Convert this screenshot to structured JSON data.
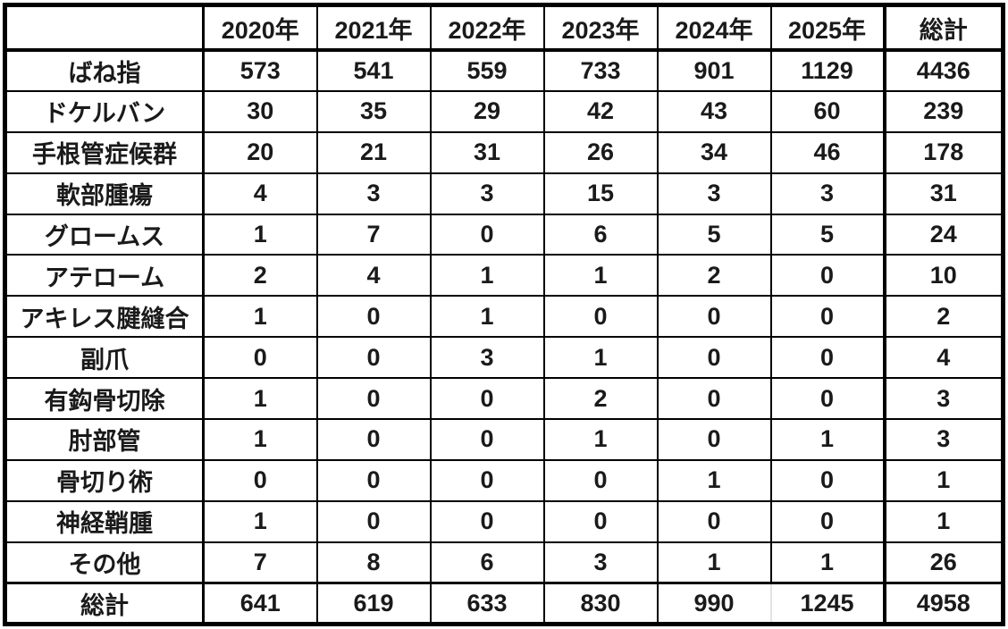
{
  "chart_data": {
    "type": "table",
    "title": "",
    "corner_label": "",
    "columns": [
      "2020年",
      "2021年",
      "2022年",
      "2023年",
      "2024年",
      "2025年",
      "総計"
    ],
    "rows": [
      {
        "label": "ばね指",
        "values": [
          573,
          541,
          559,
          733,
          901,
          1129,
          4436
        ],
        "is_total": false
      },
      {
        "label": "ドケルバン",
        "values": [
          30,
          35,
          29,
          42,
          43,
          60,
          239
        ],
        "is_total": false
      },
      {
        "label": "手根管症候群",
        "values": [
          20,
          21,
          31,
          26,
          34,
          46,
          178
        ],
        "is_total": false
      },
      {
        "label": "軟部腫瘍",
        "values": [
          4,
          3,
          3,
          15,
          3,
          3,
          31
        ],
        "is_total": false
      },
      {
        "label": "グロームス",
        "values": [
          1,
          7,
          0,
          6,
          5,
          5,
          24
        ],
        "is_total": false
      },
      {
        "label": "アテローム",
        "values": [
          2,
          4,
          1,
          1,
          2,
          0,
          10
        ],
        "is_total": false
      },
      {
        "label": "アキレス腱縫合",
        "values": [
          1,
          0,
          1,
          0,
          0,
          0,
          2
        ],
        "is_total": false
      },
      {
        "label": "副爪",
        "values": [
          0,
          0,
          3,
          1,
          0,
          0,
          4
        ],
        "is_total": false
      },
      {
        "label": "有鈎骨切除",
        "values": [
          1,
          0,
          0,
          2,
          0,
          0,
          3
        ],
        "is_total": false
      },
      {
        "label": "肘部管",
        "values": [
          1,
          0,
          0,
          1,
          0,
          1,
          3
        ],
        "is_total": false
      },
      {
        "label": "骨切り術",
        "values": [
          0,
          0,
          0,
          0,
          1,
          0,
          1
        ],
        "is_total": false
      },
      {
        "label": "神経鞘腫",
        "values": [
          1,
          0,
          0,
          0,
          0,
          0,
          1
        ],
        "is_total": false
      },
      {
        "label": "その他",
        "values": [
          7,
          8,
          6,
          3,
          1,
          1,
          26
        ],
        "is_total": false
      },
      {
        "label": "総計",
        "values": [
          641,
          619,
          633,
          830,
          990,
          1245,
          4958
        ],
        "is_total": true
      }
    ],
    "layout": {
      "border_color": "#000000",
      "background_color": "#ffffff",
      "text_color": "#1a1a1a",
      "gray_grid_artifact_color": "#e3e3e3"
    }
  }
}
